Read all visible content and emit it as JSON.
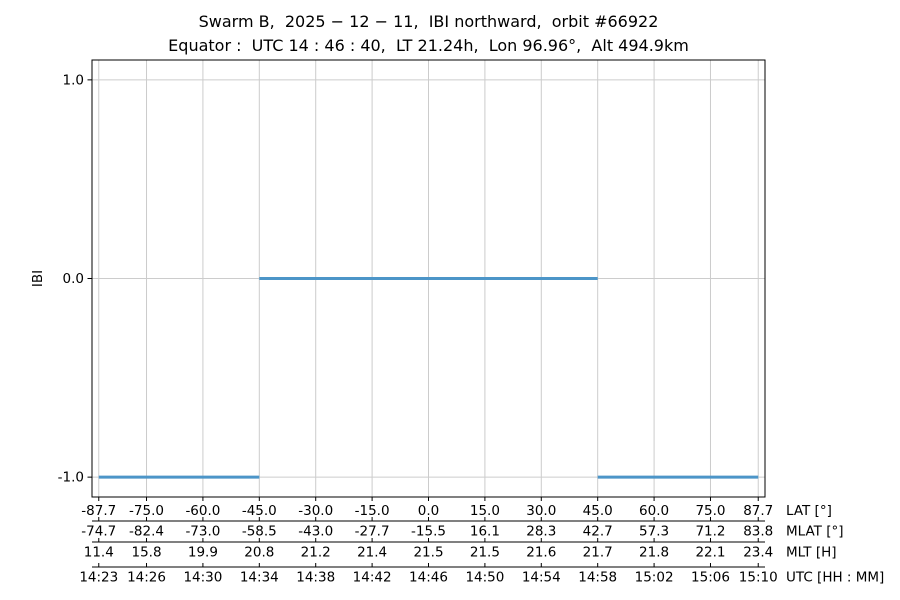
{
  "figure": {
    "title_line1": "Swarm B,  2025 − 12 − 11,  IBI northward,  orbit #66922",
    "title_line2": "Equator :  UTC 14 : 46 : 40,  LT 21.24h,  Lon 96.96°,  Alt 494.9km"
  },
  "chart_data": {
    "type": "line",
    "title": "Swarm B, 2025-12-11, IBI northward, orbit #66922",
    "subtitle": "Equator: UTC 14:46:40, LT 21.24h, Lon 96.96°, Alt 494.9km",
    "ylabel": "IBI",
    "ylim": [
      -1.1,
      1.1
    ],
    "xlim_lat": [
      -89.5,
      89.5
    ],
    "grid": true,
    "legend": "none",
    "y_ticks": [
      {
        "value": 1.0,
        "label": "1.0"
      },
      {
        "value": 0.0,
        "label": "0.0"
      },
      {
        "value": -1.0,
        "label": "-1.0"
      }
    ],
    "x_tick_lats": [
      -87.7,
      -75.0,
      -60.0,
      -45.0,
      -30.0,
      -15.0,
      0.0,
      15.0,
      30.0,
      45.0,
      60.0,
      75.0,
      87.7
    ],
    "x_axis_rows": [
      {
        "label": "LAT [°]",
        "ticks": [
          "-87.7",
          "-75.0",
          "-60.0",
          "-45.0",
          "-30.0",
          "-15.0",
          "0.0",
          "15.0",
          "30.0",
          "45.0",
          "60.0",
          "75.0",
          "87.7"
        ]
      },
      {
        "label": "MLAT [°]",
        "ticks": [
          "-74.7",
          "-82.4",
          "-73.0",
          "-58.5",
          "-43.0",
          "-27.7",
          "-15.5",
          "16.1",
          "28.3",
          "42.7",
          "57.3",
          "71.2",
          "83.8"
        ]
      },
      {
        "label": "MLT [H]",
        "ticks": [
          "11.4",
          "15.8",
          "19.9",
          "20.8",
          "21.2",
          "21.4",
          "21.5",
          "21.5",
          "21.6",
          "21.7",
          "21.8",
          "22.1",
          "23.4"
        ]
      },
      {
        "label": "UTC [HH : MM]",
        "ticks": [
          "14:23",
          "14:26",
          "14:30",
          "14:34",
          "14:38",
          "14:42",
          "14:46",
          "14:50",
          "14:54",
          "14:58",
          "15:02",
          "15:06",
          "15:10"
        ]
      }
    ],
    "series": [
      {
        "name": "IBI",
        "color": "#4c95c8",
        "line_width": 3,
        "segments": [
          {
            "lat_start": -87.7,
            "lat_end": -45.0,
            "value": -1.0
          },
          {
            "lat_start": -45.0,
            "lat_end": 45.0,
            "value": 0.0
          },
          {
            "lat_start": 45.0,
            "lat_end": 87.7,
            "value": -1.0
          }
        ]
      }
    ],
    "colors": {
      "background": "#ffffff",
      "grid": "#cccccc",
      "spine": "#000000",
      "text": "#000000"
    }
  }
}
